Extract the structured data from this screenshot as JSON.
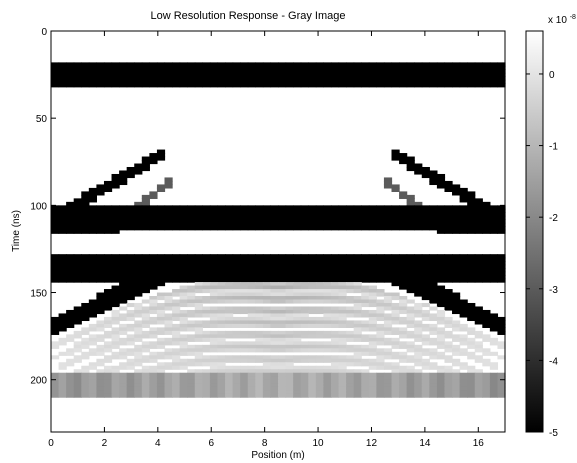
{
  "chart_data": {
    "type": "heatmap",
    "title": "Low Resolution Response - Gray Image",
    "xlabel": "Position (m)",
    "ylabel": "Time (ns)",
    "xlim": [
      0,
      17
    ],
    "ylim": [
      0,
      230
    ],
    "y_direction": "reversed",
    "x_ticks": [
      0,
      2,
      4,
      6,
      8,
      10,
      12,
      14,
      16
    ],
    "x_tick_labels": [
      "0",
      "2",
      "4",
      "6",
      "8",
      "10",
      "12",
      "14",
      "16"
    ],
    "y_ticks": [
      0,
      50,
      100,
      150,
      200
    ],
    "y_tick_labels": [
      "0",
      "50",
      "100",
      "150",
      "200"
    ],
    "colorbar": {
      "range": [
        -5,
        0.6
      ],
      "ticks": [
        0,
        -1,
        -2,
        -3,
        -4,
        -5
      ],
      "tick_labels": [
        "0",
        "-1",
        "-2",
        "-3",
        "-4",
        "-5"
      ],
      "multiplier_prefix": "x 10",
      "multiplier_exponent": "-8",
      "colormap": "gray",
      "position": "right"
    },
    "features": [
      {
        "kind": "horizontal_band",
        "t_start": 18,
        "t_end": 32,
        "value": -5
      },
      {
        "kind": "horizontal_band",
        "t_start": 101,
        "t_end": 113,
        "value": -5,
        "edge_bulge": 4
      },
      {
        "kind": "horizontal_band",
        "t_start": 128,
        "t_end": 143,
        "value": -5
      },
      {
        "kind": "diagonal",
        "x1": 0,
        "t1": 108,
        "x2": 4.2,
        "t2": 70,
        "width": 7,
        "value": -5
      },
      {
        "kind": "diagonal",
        "x1": 17,
        "t1": 108,
        "x2": 12.8,
        "t2": 70,
        "width": 7,
        "value": -5
      },
      {
        "kind": "diagonal",
        "x1": 2.8,
        "t1": 105,
        "x2": 4.6,
        "t2": 85,
        "width": 5,
        "value": -3
      },
      {
        "kind": "diagonal",
        "x1": 14.2,
        "t1": 105,
        "x2": 12.4,
        "t2": 85,
        "width": 5,
        "value": -3
      },
      {
        "kind": "diagonal",
        "x1": 0,
        "t1": 170,
        "x2": 4.5,
        "t2": 137,
        "width": 11,
        "value": -5
      },
      {
        "kind": "diagonal",
        "x1": 17,
        "t1": 170,
        "x2": 12.5,
        "t2": 137,
        "width": 11,
        "value": -5
      },
      {
        "kind": "horizontal_band",
        "t_start": 197,
        "t_end": 210,
        "value": -1.6,
        "edge_darkening": true
      },
      {
        "kind": "hyperbola_fan",
        "center_x": 8.5,
        "apex_t": 140,
        "end_t": 195,
        "value": -1.3
      }
    ]
  }
}
